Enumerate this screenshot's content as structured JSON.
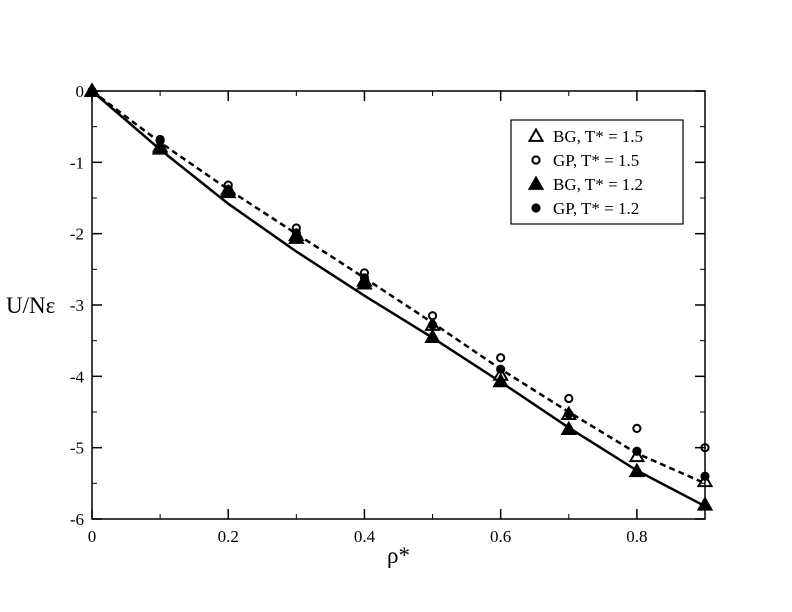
{
  "chart_data": {
    "type": "scatter",
    "xlabel": "ρ*",
    "ylabel": "U/Nε",
    "xlim": [
      0,
      0.9
    ],
    "ylim": [
      -6,
      0
    ],
    "x_ticks": [
      "0",
      "0.2",
      "0.4",
      "0.6",
      "0.8"
    ],
    "y_ticks": [
      "0",
      "-1",
      "-2",
      "-3",
      "-4",
      "-5",
      "-6"
    ],
    "grid": false,
    "legend_position": "top-right",
    "series": [
      {
        "name": "BG, T* = 1.5",
        "marker": "triangle-open",
        "x": [
          0,
          0.1,
          0.2,
          0.3,
          0.4,
          0.5,
          0.6,
          0.7,
          0.8,
          0.9
        ],
        "y": [
          0,
          -0.78,
          -1.38,
          -2.02,
          -2.66,
          -3.28,
          -3.98,
          -4.53,
          -5.12,
          -5.47
        ]
      },
      {
        "name": "GP, T* = 1.5",
        "marker": "circle-open",
        "x": [
          0,
          0.1,
          0.2,
          0.3,
          0.4,
          0.5,
          0.6,
          0.7,
          0.8,
          0.9
        ],
        "y": [
          0,
          -0.68,
          -1.32,
          -1.92,
          -2.55,
          -3.15,
          -3.74,
          -4.31,
          -4.73,
          -5.0
        ]
      },
      {
        "name": "BG, T* = 1.2",
        "marker": "triangle-filled",
        "x": [
          0,
          0.1,
          0.2,
          0.3,
          0.4,
          0.5,
          0.6,
          0.7,
          0.8,
          0.9
        ],
        "y": [
          0,
          -0.81,
          -1.42,
          -2.06,
          -2.7,
          -3.45,
          -4.07,
          -4.74,
          -5.33,
          -5.8
        ]
      },
      {
        "name": "GP, T* = 1.2",
        "marker": "circle-filled",
        "x": [
          0,
          0.1,
          0.2,
          0.3,
          0.4,
          0.5,
          0.6,
          0.7,
          0.8,
          0.9
        ],
        "y": [
          0,
          -0.7,
          -1.38,
          -1.99,
          -2.62,
          -3.28,
          -3.9,
          -4.53,
          -5.05,
          -5.4
        ]
      }
    ],
    "lines": [
      {
        "style": "dashed",
        "x": [
          0,
          0.1,
          0.2,
          0.3,
          0.4,
          0.5,
          0.6,
          0.7,
          0.8,
          0.9
        ],
        "y": [
          0,
          -0.72,
          -1.38,
          -2.0,
          -2.62,
          -3.25,
          -3.9,
          -4.5,
          -5.08,
          -5.5
        ]
      },
      {
        "style": "solid",
        "x": [
          0,
          0.1,
          0.2,
          0.3,
          0.4,
          0.5,
          0.6,
          0.7,
          0.8,
          0.9
        ],
        "y": [
          0,
          -0.82,
          -1.58,
          -2.25,
          -2.87,
          -3.46,
          -4.08,
          -4.72,
          -5.32,
          -5.82
        ]
      }
    ]
  }
}
